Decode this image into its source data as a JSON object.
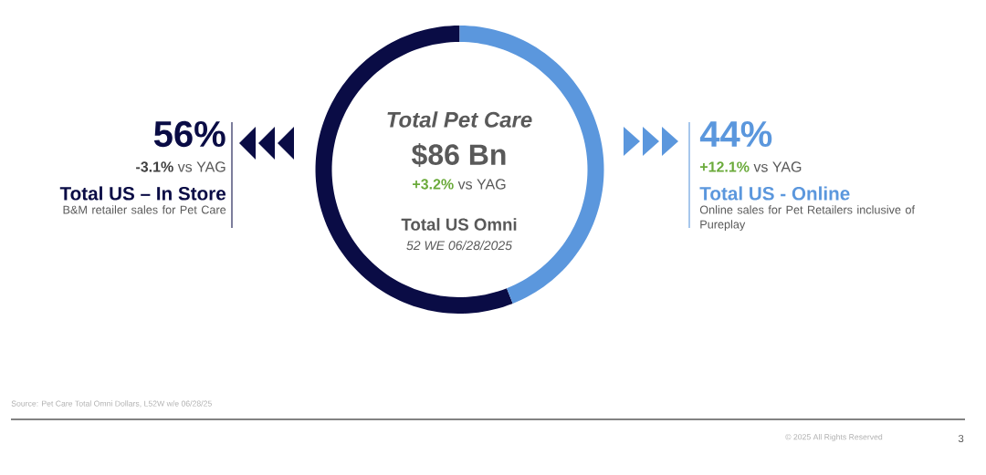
{
  "chart_data": {
    "type": "donut",
    "title": "Total Pet Care",
    "categories": [
      "Total US – In Store",
      "Total US - Online"
    ],
    "values": [
      56,
      44
    ],
    "colors": [
      "#0a0c45",
      "#5b97dd"
    ],
    "value_labels": [
      "56%",
      "44%"
    ],
    "annotations": [
      "$86 Bn",
      "+3.2%",
      "vs YAG",
      "Total US Omni",
      "52 WE 06/28/2025",
      "-3.1%",
      "vs YAG",
      "B&M retailer sales for Pet Care",
      "+12.1%",
      "vs YAG",
      "Online sales for Pet Retailers inclusive of Pureplay",
      "Source: Pet Care Total Omni Dollars, L52W w/e 06/28/25",
      "© 2025 All Rights Reserved",
      "3"
    ]
  }
}
